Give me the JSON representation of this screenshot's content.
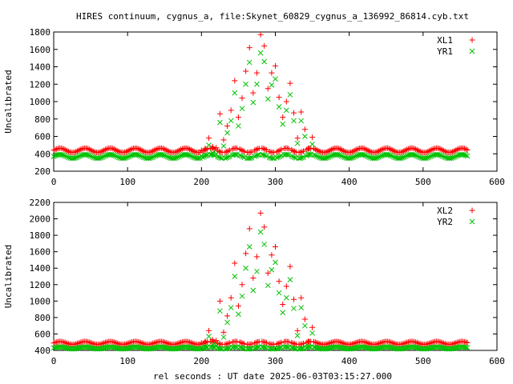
{
  "title": "HIRES continuum, cygnus_a, file:Skynet_60829_cygnus_a_136992_86814.cyb.txt",
  "xlabel": "rel seconds : UT date 2025-06-03T03:15:27.000",
  "colors": {
    "red": "#ff0000",
    "green": "#00c000",
    "axis": "#000000"
  },
  "chart_data": [
    {
      "type": "scatter",
      "ylabel": "Uncalibrated",
      "xlim": [
        0,
        600
      ],
      "ylim": [
        200,
        1800
      ],
      "xticks": [
        0,
        100,
        200,
        300,
        400,
        500,
        600
      ],
      "yticks": [
        200,
        400,
        600,
        800,
        1000,
        1200,
        1400,
        1600,
        1800
      ],
      "legend_position": "top-right",
      "series": [
        {
          "name": "XL1",
          "marker": "plus",
          "color": "#ff0000",
          "baseline": 440,
          "ripple": 25,
          "x": [
            200,
            205,
            210,
            215,
            220,
            225,
            230,
            235,
            240,
            245,
            250,
            255,
            260,
            265,
            270,
            275,
            280,
            285,
            290,
            295,
            300,
            305,
            310,
            315,
            320,
            325,
            330,
            335,
            340,
            345,
            350
          ],
          "y": [
            440,
            460,
            580,
            480,
            470,
            860,
            560,
            720,
            900,
            1240,
            820,
            1040,
            1350,
            1620,
            1100,
            1330,
            1770,
            1640,
            1150,
            1330,
            1410,
            1050,
            820,
            1000,
            1210,
            870,
            580,
            880,
            680,
            460,
            590
          ]
        },
        {
          "name": "YR1",
          "marker": "cross",
          "color": "#00c000",
          "baseline": 370,
          "ripple": 22,
          "x": [
            200,
            205,
            210,
            215,
            220,
            225,
            230,
            235,
            240,
            245,
            250,
            255,
            260,
            265,
            270,
            275,
            280,
            285,
            290,
            295,
            300,
            305,
            310,
            315,
            320,
            325,
            330,
            335,
            340,
            345,
            350
          ],
          "y": [
            370,
            390,
            500,
            410,
            400,
            760,
            490,
            640,
            780,
            1100,
            720,
            920,
            1200,
            1450,
            990,
            1200,
            1560,
            1460,
            1030,
            1190,
            1260,
            940,
            740,
            900,
            1080,
            780,
            520,
            780,
            600,
            400,
            510
          ]
        }
      ]
    },
    {
      "type": "scatter",
      "ylabel": "Uncalibrated",
      "xlim": [
        0,
        600
      ],
      "ylim": [
        400,
        2200
      ],
      "xticks": [
        0,
        100,
        200,
        300,
        400,
        500,
        600
      ],
      "yticks": [
        400,
        600,
        800,
        1000,
        1200,
        1400,
        1600,
        1800,
        2000,
        2200
      ],
      "legend_position": "top-right",
      "series": [
        {
          "name": "XL2",
          "marker": "plus",
          "color": "#ff0000",
          "baseline": 490,
          "ripple": 18,
          "x": [
            200,
            205,
            210,
            215,
            220,
            225,
            230,
            235,
            240,
            245,
            250,
            255,
            260,
            265,
            270,
            275,
            280,
            285,
            290,
            295,
            300,
            305,
            310,
            315,
            320,
            325,
            330,
            335,
            340,
            345,
            350
          ],
          "y": [
            490,
            510,
            640,
            530,
            520,
            1000,
            620,
            820,
            1040,
            1460,
            940,
            1200,
            1580,
            1880,
            1280,
            1540,
            2070,
            1900,
            1340,
            1560,
            1660,
            1240,
            960,
            1180,
            1420,
            1020,
            640,
            1040,
            780,
            510,
            680
          ]
        },
        {
          "name": "YR2",
          "marker": "cross",
          "color": "#00c000",
          "baseline": 430,
          "ripple": 12,
          "x": [
            200,
            205,
            210,
            215,
            220,
            225,
            230,
            235,
            240,
            245,
            250,
            255,
            260,
            265,
            270,
            275,
            280,
            285,
            290,
            295,
            300,
            305,
            310,
            315,
            320,
            325,
            330,
            335,
            340,
            345,
            350
          ],
          "y": [
            430,
            450,
            570,
            470,
            460,
            880,
            560,
            740,
            920,
            1300,
            840,
            1060,
            1400,
            1660,
            1130,
            1360,
            1840,
            1690,
            1190,
            1380,
            1470,
            1100,
            860,
            1040,
            1260,
            910,
            580,
            920,
            700,
            450,
            610
          ]
        }
      ]
    }
  ]
}
